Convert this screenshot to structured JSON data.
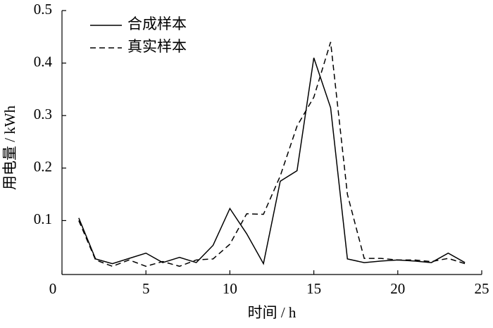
{
  "chart_data": {
    "type": "line",
    "xlabel": "时间 / h",
    "ylabel": "用电量 / kWh",
    "x": [
      1,
      2,
      3,
      4,
      5,
      6,
      7,
      8,
      9,
      10,
      11,
      12,
      13,
      14,
      15,
      16,
      17,
      18,
      19,
      20,
      21,
      22,
      23,
      24
    ],
    "series": [
      {
        "name": "合成样本",
        "color": "#000000",
        "linestyle": "solid",
        "values": [
          0.105,
          0.027,
          0.018,
          0.028,
          0.038,
          0.02,
          0.03,
          0.02,
          0.053,
          0.123,
          0.075,
          0.018,
          0.175,
          0.195,
          0.41,
          0.315,
          0.027,
          0.02,
          0.023,
          0.025,
          0.023,
          0.02,
          0.038,
          0.02
        ]
      },
      {
        "name": "真实样本",
        "color": "#000000",
        "linestyle": "dashed",
        "values": [
          0.1,
          0.025,
          0.013,
          0.025,
          0.013,
          0.022,
          0.013,
          0.025,
          0.027,
          0.055,
          0.113,
          0.112,
          0.185,
          0.28,
          0.335,
          0.44,
          0.15,
          0.028,
          0.028,
          0.025,
          0.025,
          0.022,
          0.028,
          0.018
        ]
      }
    ],
    "xlim": [
      0,
      25
    ],
    "xticks": [
      0,
      5,
      10,
      15,
      20,
      25
    ],
    "ylim": [
      0,
      0.5
    ],
    "yticks": [
      0.1,
      0.2,
      0.3,
      0.4,
      0.5
    ],
    "legend": "upper-left"
  }
}
